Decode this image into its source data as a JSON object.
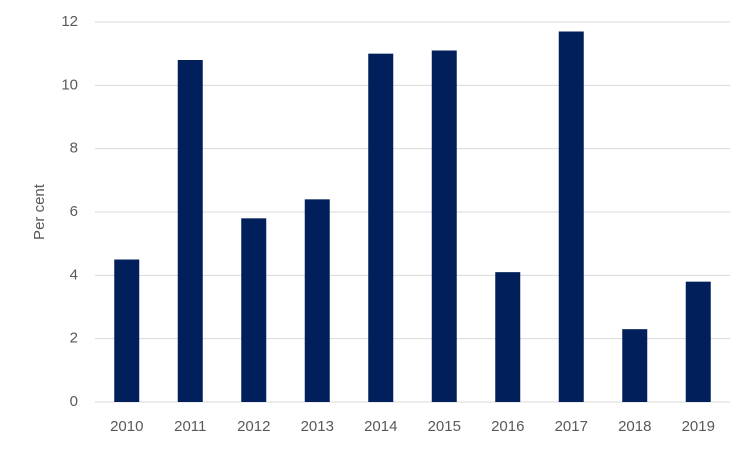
{
  "chart_data": {
    "type": "bar",
    "y_label": "Per cent",
    "categories": [
      "2010",
      "2011",
      "2012",
      "2013",
      "2014",
      "2015",
      "2016",
      "2017",
      "2018",
      "2019"
    ],
    "values": [
      4.5,
      10.8,
      5.8,
      6.4,
      11.0,
      11.1,
      4.1,
      11.7,
      2.3,
      3.8
    ],
    "color": "#001f5b",
    "ylim": [
      0,
      12
    ],
    "yticks": [
      0,
      2,
      4,
      6,
      8,
      10,
      12
    ],
    "grid": true
  }
}
